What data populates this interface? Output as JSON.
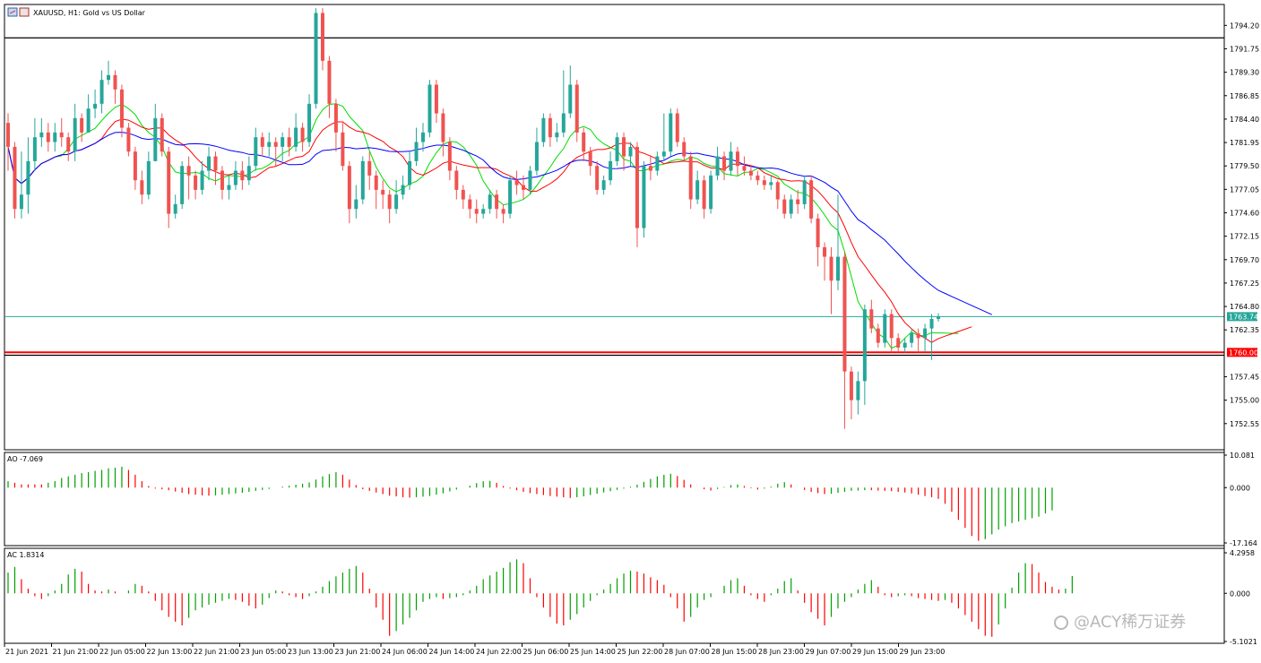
{
  "chart_data": [
    {
      "type": "candlestick",
      "title": "XAUUSD, H1:  Gold vs US Dollar",
      "price_ticks": [
        1794.2,
        1791.75,
        1789.3,
        1786.85,
        1784.4,
        1781.95,
        1779.5,
        1777.05,
        1774.6,
        1772.15,
        1769.7,
        1767.25,
        1764.8,
        1762.35,
        1757.45,
        1755.0,
        1752.55
      ],
      "ylim": [
        1750.0,
        1796.2
      ],
      "x_tick_labels": [
        "21 Jun 2021",
        "21 Jun 21:00",
        "22 Jun 05:00",
        "22 Jun 13:00",
        "22 Jun 21:00",
        "23 Jun 05:00",
        "23 Jun 13:00",
        "23 Jun 21:00",
        "24 Jun 06:00",
        "24 Jun 14:00",
        "24 Jun 22:00",
        "25 Jun 06:00",
        "25 Jun 14:00",
        "25 Jun 22:00",
        "28 Jun 07:00",
        "28 Jun 15:00",
        "28 Jun 23:00",
        "29 Jun 07:00",
        "29 Jun 15:00",
        "29 Jun 23:00"
      ],
      "current_price": {
        "value": 1763.74,
        "label": "1763.74",
        "color": "#26a69a"
      },
      "level_line": {
        "value": 1760.0,
        "label": "1760.00",
        "color": "#ff0000"
      },
      "black_lines": [
        1792.9,
        1759.7
      ],
      "colors": {
        "bull": "#26a69a",
        "bear": "#ef5350",
        "ma_fast": "#00dd00",
        "ma_mid": "#ff0000",
        "ma_slow": "#0000ff",
        "grid": "#000000"
      },
      "candles": [
        [
          1784.0,
          1781.5,
          1785.0,
          1779.0
        ],
        [
          1781.5,
          1775.0,
          1782.0,
          1774.0
        ],
        [
          1775.0,
          1776.5,
          1781.0,
          1774.0
        ],
        [
          1776.5,
          1780.0,
          1782.5,
          1774.5
        ],
        [
          1780.0,
          1782.5,
          1784.5,
          1779.0
        ],
        [
          1782.5,
          1783.0,
          1784.5,
          1781.5
        ],
        [
          1783.0,
          1782.0,
          1784.0,
          1781.0
        ],
        [
          1782.0,
          1783.0,
          1784.0,
          1781.0
        ],
        [
          1783.0,
          1782.5,
          1784.5,
          1781.5
        ],
        [
          1782.5,
          1781.0,
          1783.0,
          1780.0
        ],
        [
          1781.0,
          1784.5,
          1786.0,
          1780.0
        ],
        [
          1784.5,
          1783.0,
          1785.0,
          1782.0
        ],
        [
          1783.0,
          1785.5,
          1787.0,
          1783.0
        ],
        [
          1785.5,
          1786.0,
          1787.5,
          1784.5
        ],
        [
          1786.0,
          1788.5,
          1789.5,
          1785.0
        ],
        [
          1788.5,
          1789.0,
          1790.5,
          1788.0
        ],
        [
          1789.0,
          1787.5,
          1789.5,
          1786.0
        ],
        [
          1787.5,
          1783.5,
          1788.0,
          1782.5
        ],
        [
          1783.5,
          1781.0,
          1784.0,
          1780.5
        ],
        [
          1781.0,
          1778.0,
          1781.5,
          1777.0
        ],
        [
          1778.0,
          1776.5,
          1779.0,
          1775.5
        ],
        [
          1776.5,
          1780.0,
          1781.0,
          1776.0
        ],
        [
          1780.0,
          1784.5,
          1786.0,
          1780.0
        ],
        [
          1784.5,
          1781.0,
          1785.0,
          1780.5
        ],
        [
          1781.0,
          1774.5,
          1781.5,
          1773.0
        ],
        [
          1774.5,
          1775.5,
          1776.5,
          1774.0
        ],
        [
          1775.5,
          1779.5,
          1780.0,
          1775.0
        ],
        [
          1779.5,
          1778.5,
          1780.5,
          1776.0
        ],
        [
          1778.5,
          1777.0,
          1779.0,
          1776.0
        ],
        [
          1777.0,
          1779.0,
          1780.0,
          1776.5
        ],
        [
          1779.0,
          1780.5,
          1781.5,
          1778.0
        ],
        [
          1780.5,
          1779.0,
          1781.0,
          1777.5
        ],
        [
          1779.0,
          1777.0,
          1779.5,
          1776.0
        ],
        [
          1777.0,
          1777.5,
          1778.5,
          1776.0
        ],
        [
          1777.5,
          1779.0,
          1780.0,
          1777.0
        ],
        [
          1779.0,
          1778.0,
          1780.0,
          1777.0
        ],
        [
          1778.0,
          1779.5,
          1780.5,
          1777.5
        ],
        [
          1779.5,
          1782.5,
          1783.5,
          1779.0
        ],
        [
          1782.5,
          1781.5,
          1783.0,
          1780.5
        ],
        [
          1781.5,
          1782.0,
          1783.0,
          1780.5
        ],
        [
          1782.0,
          1781.5,
          1782.5,
          1779.5
        ],
        [
          1781.5,
          1782.5,
          1783.0,
          1780.0
        ],
        [
          1782.5,
          1781.5,
          1783.5,
          1780.5
        ],
        [
          1781.5,
          1783.5,
          1785.0,
          1781.0
        ],
        [
          1783.5,
          1782.0,
          1784.0,
          1781.0
        ],
        [
          1782.0,
          1786.0,
          1787.0,
          1781.5
        ],
        [
          1786.0,
          1795.5,
          1796.0,
          1785.5
        ],
        [
          1795.5,
          1790.5,
          1796.0,
          1789.5
        ],
        [
          1790.5,
          1786.0,
          1791.0,
          1784.5
        ],
        [
          1786.0,
          1783.0,
          1786.5,
          1781.0
        ],
        [
          1783.0,
          1779.5,
          1784.0,
          1779.0
        ],
        [
          1779.5,
          1775.0,
          1780.0,
          1773.5
        ],
        [
          1775.0,
          1776.0,
          1777.5,
          1774.0
        ],
        [
          1776.0,
          1780.0,
          1780.5,
          1775.5
        ],
        [
          1780.0,
          1778.5,
          1781.0,
          1777.0
        ],
        [
          1778.5,
          1777.0,
          1779.0,
          1775.0
        ],
        [
          1777.0,
          1776.5,
          1778.0,
          1775.0
        ],
        [
          1776.5,
          1775.0,
          1777.0,
          1773.5
        ],
        [
          1775.0,
          1776.5,
          1778.0,
          1774.5
        ],
        [
          1776.5,
          1777.5,
          1778.5,
          1776.0
        ],
        [
          1777.5,
          1780.0,
          1781.0,
          1777.0
        ],
        [
          1780.0,
          1782.0,
          1783.5,
          1779.5
        ],
        [
          1782.0,
          1783.0,
          1784.0,
          1781.0
        ],
        [
          1783.0,
          1788.0,
          1788.5,
          1782.5
        ],
        [
          1788.0,
          1785.0,
          1788.5,
          1784.0
        ],
        [
          1785.0,
          1782.0,
          1785.5,
          1780.5
        ],
        [
          1782.0,
          1779.0,
          1782.5,
          1778.0
        ],
        [
          1779.0,
          1777.0,
          1779.5,
          1776.0
        ],
        [
          1777.0,
          1776.0,
          1777.5,
          1775.0
        ],
        [
          1776.0,
          1775.0,
          1776.5,
          1774.0
        ],
        [
          1775.0,
          1774.5,
          1776.0,
          1773.5
        ],
        [
          1774.5,
          1775.0,
          1775.5,
          1774.0
        ],
        [
          1775.0,
          1776.5,
          1777.0,
          1774.5
        ],
        [
          1776.5,
          1775.0,
          1777.0,
          1774.0
        ],
        [
          1775.0,
          1774.5,
          1775.5,
          1773.5
        ],
        [
          1774.5,
          1778.0,
          1778.5,
          1774.0
        ],
        [
          1778.0,
          1777.5,
          1779.0,
          1776.5
        ],
        [
          1777.5,
          1777.0,
          1778.5,
          1776.0
        ],
        [
          1777.0,
          1779.0,
          1779.5,
          1776.5
        ],
        [
          1779.0,
          1782.0,
          1783.5,
          1778.5
        ],
        [
          1782.0,
          1784.5,
          1785.0,
          1781.5
        ],
        [
          1784.5,
          1782.5,
          1785.0,
          1781.5
        ],
        [
          1782.5,
          1783.0,
          1784.0,
          1782.0
        ],
        [
          1783.0,
          1785.0,
          1789.5,
          1782.5
        ],
        [
          1785.0,
          1788.0,
          1790.0,
          1784.5
        ],
        [
          1788.0,
          1783.0,
          1788.5,
          1782.0
        ],
        [
          1783.0,
          1781.0,
          1783.5,
          1780.0
        ],
        [
          1781.0,
          1779.5,
          1781.5,
          1778.5
        ],
        [
          1779.5,
          1777.0,
          1780.0,
          1776.5
        ],
        [
          1777.0,
          1778.0,
          1778.5,
          1776.5
        ],
        [
          1778.0,
          1780.0,
          1781.0,
          1777.5
        ],
        [
          1780.0,
          1782.5,
          1783.0,
          1779.5
        ],
        [
          1782.5,
          1780.5,
          1783.0,
          1779.0
        ],
        [
          1780.5,
          1781.5,
          1782.0,
          1779.5
        ],
        [
          1781.5,
          1773.0,
          1782.0,
          1771.0
        ],
        [
          1773.0,
          1779.5,
          1780.0,
          1772.0
        ],
        [
          1779.5,
          1779.0,
          1780.5,
          1778.0
        ],
        [
          1779.0,
          1780.5,
          1781.0,
          1778.5
        ],
        [
          1780.5,
          1781.0,
          1785.0,
          1780.0
        ],
        [
          1781.0,
          1785.0,
          1785.5,
          1780.5
        ],
        [
          1785.0,
          1782.0,
          1785.5,
          1781.5
        ],
        [
          1782.0,
          1780.5,
          1782.5,
          1780.0
        ],
        [
          1780.5,
          1776.0,
          1781.0,
          1775.0
        ],
        [
          1776.0,
          1778.0,
          1779.0,
          1775.5
        ],
        [
          1778.0,
          1775.0,
          1778.5,
          1774.0
        ],
        [
          1775.0,
          1778.5,
          1779.0,
          1774.5
        ],
        [
          1778.5,
          1780.5,
          1781.5,
          1778.0
        ],
        [
          1780.5,
          1779.0,
          1781.0,
          1778.0
        ],
        [
          1779.0,
          1781.0,
          1782.0,
          1778.5
        ],
        [
          1781.0,
          1779.5,
          1781.5,
          1778.5
        ],
        [
          1779.5,
          1779.0,
          1780.5,
          1778.5
        ],
        [
          1779.0,
          1778.5,
          1779.5,
          1778.0
        ],
        [
          1778.5,
          1778.0,
          1779.0,
          1777.5
        ],
        [
          1778.0,
          1777.5,
          1778.5,
          1777.0
        ],
        [
          1777.5,
          1777.8,
          1778.5,
          1777.0
        ],
        [
          1777.8,
          1776.0,
          1778.0,
          1775.0
        ],
        [
          1776.0,
          1774.5,
          1776.5,
          1774.0
        ],
        [
          1774.5,
          1776.0,
          1776.5,
          1774.0
        ],
        [
          1776.0,
          1775.5,
          1777.0,
          1774.5
        ],
        [
          1775.5,
          1778.0,
          1778.5,
          1775.0
        ],
        [
          1778.0,
          1774.0,
          1778.5,
          1773.5
        ],
        [
          1774.0,
          1771.0,
          1774.5,
          1769.0
        ],
        [
          1771.0,
          1770.0,
          1771.5,
          1767.5
        ],
        [
          1770.0,
          1767.5,
          1771.0,
          1764.0
        ],
        [
          1767.5,
          1770.0,
          1776.5,
          1766.5
        ],
        [
          1770.0,
          1758.0,
          1770.5,
          1752.0
        ],
        [
          1758.0,
          1755.0,
          1758.5,
          1753.0
        ],
        [
          1755.0,
          1757.0,
          1758.0,
          1753.5
        ],
        [
          1757.0,
          1764.5,
          1765.0,
          1754.5
        ],
        [
          1764.5,
          1762.5,
          1765.5,
          1762.0
        ],
        [
          1762.5,
          1761.0,
          1763.0,
          1760.5
        ],
        [
          1761.0,
          1764.0,
          1764.5,
          1760.5
        ],
        [
          1764.0,
          1761.5,
          1764.5,
          1760.0
        ],
        [
          1761.5,
          1760.5,
          1762.0,
          1760.0
        ],
        [
          1760.5,
          1761.0,
          1761.5,
          1760.0
        ],
        [
          1761.0,
          1762.0,
          1762.5,
          1760.5
        ],
        [
          1762.0,
          1761.5,
          1762.5,
          1760.0
        ],
        [
          1761.5,
          1762.5,
          1763.0,
          1760.0
        ],
        [
          1762.5,
          1763.5,
          1764.0,
          1759.2
        ],
        [
          1763.5,
          1763.74,
          1764.1,
          1763.2
        ]
      ]
    },
    {
      "type": "bar",
      "title": "AO -7.069",
      "y_tick_labels": [
        "10.081",
        "0.000",
        "-17.164"
      ],
      "ylim": [
        -17.164,
        10.081
      ],
      "colors": {
        "up": "#00a000",
        "down": "#ff0000"
      },
      "values": [
        2,
        1.5,
        1,
        1,
        1,
        1,
        1.5,
        2,
        3,
        3.5,
        4,
        4.5,
        4.8,
        5.2,
        5.5,
        6,
        6.2,
        6.5,
        5.5,
        4,
        2,
        0.5,
        -0.3,
        -0.5,
        -0.8,
        -1.2,
        -1.6,
        -2,
        -2.2,
        -2.4,
        -2.5,
        -2.4,
        -2.2,
        -2,
        -1.8,
        -1.6,
        -1.3,
        -1,
        -0.7,
        -0.4,
        0,
        0.3,
        0.6,
        0.9,
        1.2,
        1.6,
        2.5,
        3.5,
        4.2,
        4.8,
        4,
        2.5,
        0.8,
        -0.5,
        -1,
        -1.5,
        -2,
        -2.5,
        -2.7,
        -3,
        -3.1,
        -3,
        -2.8,
        -2.6,
        -2.2,
        -1.8,
        -1.2,
        -0.6,
        0,
        0.6,
        1.4,
        2,
        2.1,
        1.5,
        0.5,
        -0.3,
        -0.8,
        -1.3,
        -1.7,
        -2,
        -2.3,
        -2.6,
        -2.8,
        -3,
        -3.2,
        -3,
        -2.7,
        -2.3,
        -1.9,
        -1.5,
        -1.1,
        -0.7,
        -0.3,
        0.3,
        0.9,
        1.8,
        2.7,
        3.5,
        4,
        4.3,
        3.6,
        2.4,
        1,
        0,
        -0.5,
        -0.9,
        -0.4,
        0.2,
        0.8,
        1,
        0.5,
        -0.2,
        -0.6,
        -0.3,
        0.3,
        1.2,
        1.7,
        1,
        0,
        -0.7,
        -1.3,
        -1.7,
        -2,
        -1.9,
        -1.6,
        -1.3,
        -1,
        -0.9,
        -0.8,
        -0.8,
        -0.9,
        -1,
        -1.1,
        -1.3,
        -1.5,
        -1.8,
        -2.2,
        -2.6,
        -3,
        -3.5,
        -5,
        -7.5,
        -10,
        -12.5,
        -15,
        -16.5,
        -16,
        -14.5,
        -13,
        -12,
        -11,
        -10.5,
        -10,
        -9.5,
        -9,
        -8,
        -7.069
      ]
    },
    {
      "type": "bar",
      "title": "AC 1.8314",
      "y_tick_labels": [
        "4.2958",
        "0.000",
        "-5.1021"
      ],
      "ylim": [
        -5.1021,
        4.2958
      ],
      "colors": {
        "up": "#00a000",
        "down": "#ff0000"
      },
      "values": [
        2.2,
        2.8,
        1.5,
        0.5,
        -0.3,
        -0.6,
        -0.3,
        0.3,
        1,
        2,
        2.6,
        2.3,
        1,
        0.3,
        0.2,
        0.4,
        0.2,
        0,
        0.3,
        1,
        0.8,
        0.2,
        -0.8,
        -1.8,
        -2.5,
        -3,
        -3.4,
        -2.6,
        -1.8,
        -1.5,
        -1.2,
        -1,
        -0.8,
        -0.6,
        -0.7,
        -0.9,
        -1.3,
        -1.6,
        -1.2,
        -0.5,
        0.3,
        0.2,
        -0.2,
        -0.4,
        -0.6,
        -0.3,
        0.2,
        0.7,
        1.3,
        1.8,
        2.2,
        2.6,
        2.9,
        2.2,
        0.5,
        -1.5,
        -2.8,
        -4.5,
        -4,
        -3.3,
        -2.6,
        -1.8,
        -0.9,
        -0.6,
        -0.4,
        -0.6,
        -0.5,
        -0.4,
        -0.2,
        0.3,
        0.8,
        1.5,
        1.9,
        2.3,
        2.7,
        3.3,
        3.6,
        3.2,
        1.6,
        -0.4,
        -1.5,
        -2.5,
        -3.2,
        -3.4,
        -2.8,
        -2.2,
        -1.5,
        -0.8,
        -0.2,
        0.4,
        1,
        1.6,
        2.1,
        2.4,
        2.3,
        2.1,
        1.7,
        1.4,
        0.9,
        -0.4,
        -1.6,
        -3,
        -2.5,
        -1.5,
        -0.7,
        -0.4,
        0,
        0.8,
        1.4,
        1.6,
        0.8,
        -0.2,
        -0.6,
        -0.9,
        -0.2,
        0.5,
        1.3,
        1.6,
        0.3,
        -1,
        -2,
        -2.7,
        -3.4,
        -2.5,
        -1.6,
        -0.9,
        -0.4,
        0.4,
        1,
        1.4,
        0.7,
        -0.2,
        -0.4,
        -0.3,
        -0.2,
        -0.3,
        -0.5,
        -0.6,
        -0.7,
        -0.8,
        -0.7,
        -1,
        -1.6,
        -2.3,
        -3,
        -3.8,
        -4.5,
        -4.6,
        -3.3,
        -1.6,
        0.6,
        2.2,
        3.2,
        3.1,
        2.2,
        1.2,
        0.7,
        0.4,
        0.5,
        1.8314
      ]
    }
  ],
  "watermark": {
    "text": "@ACY稀万证券"
  }
}
